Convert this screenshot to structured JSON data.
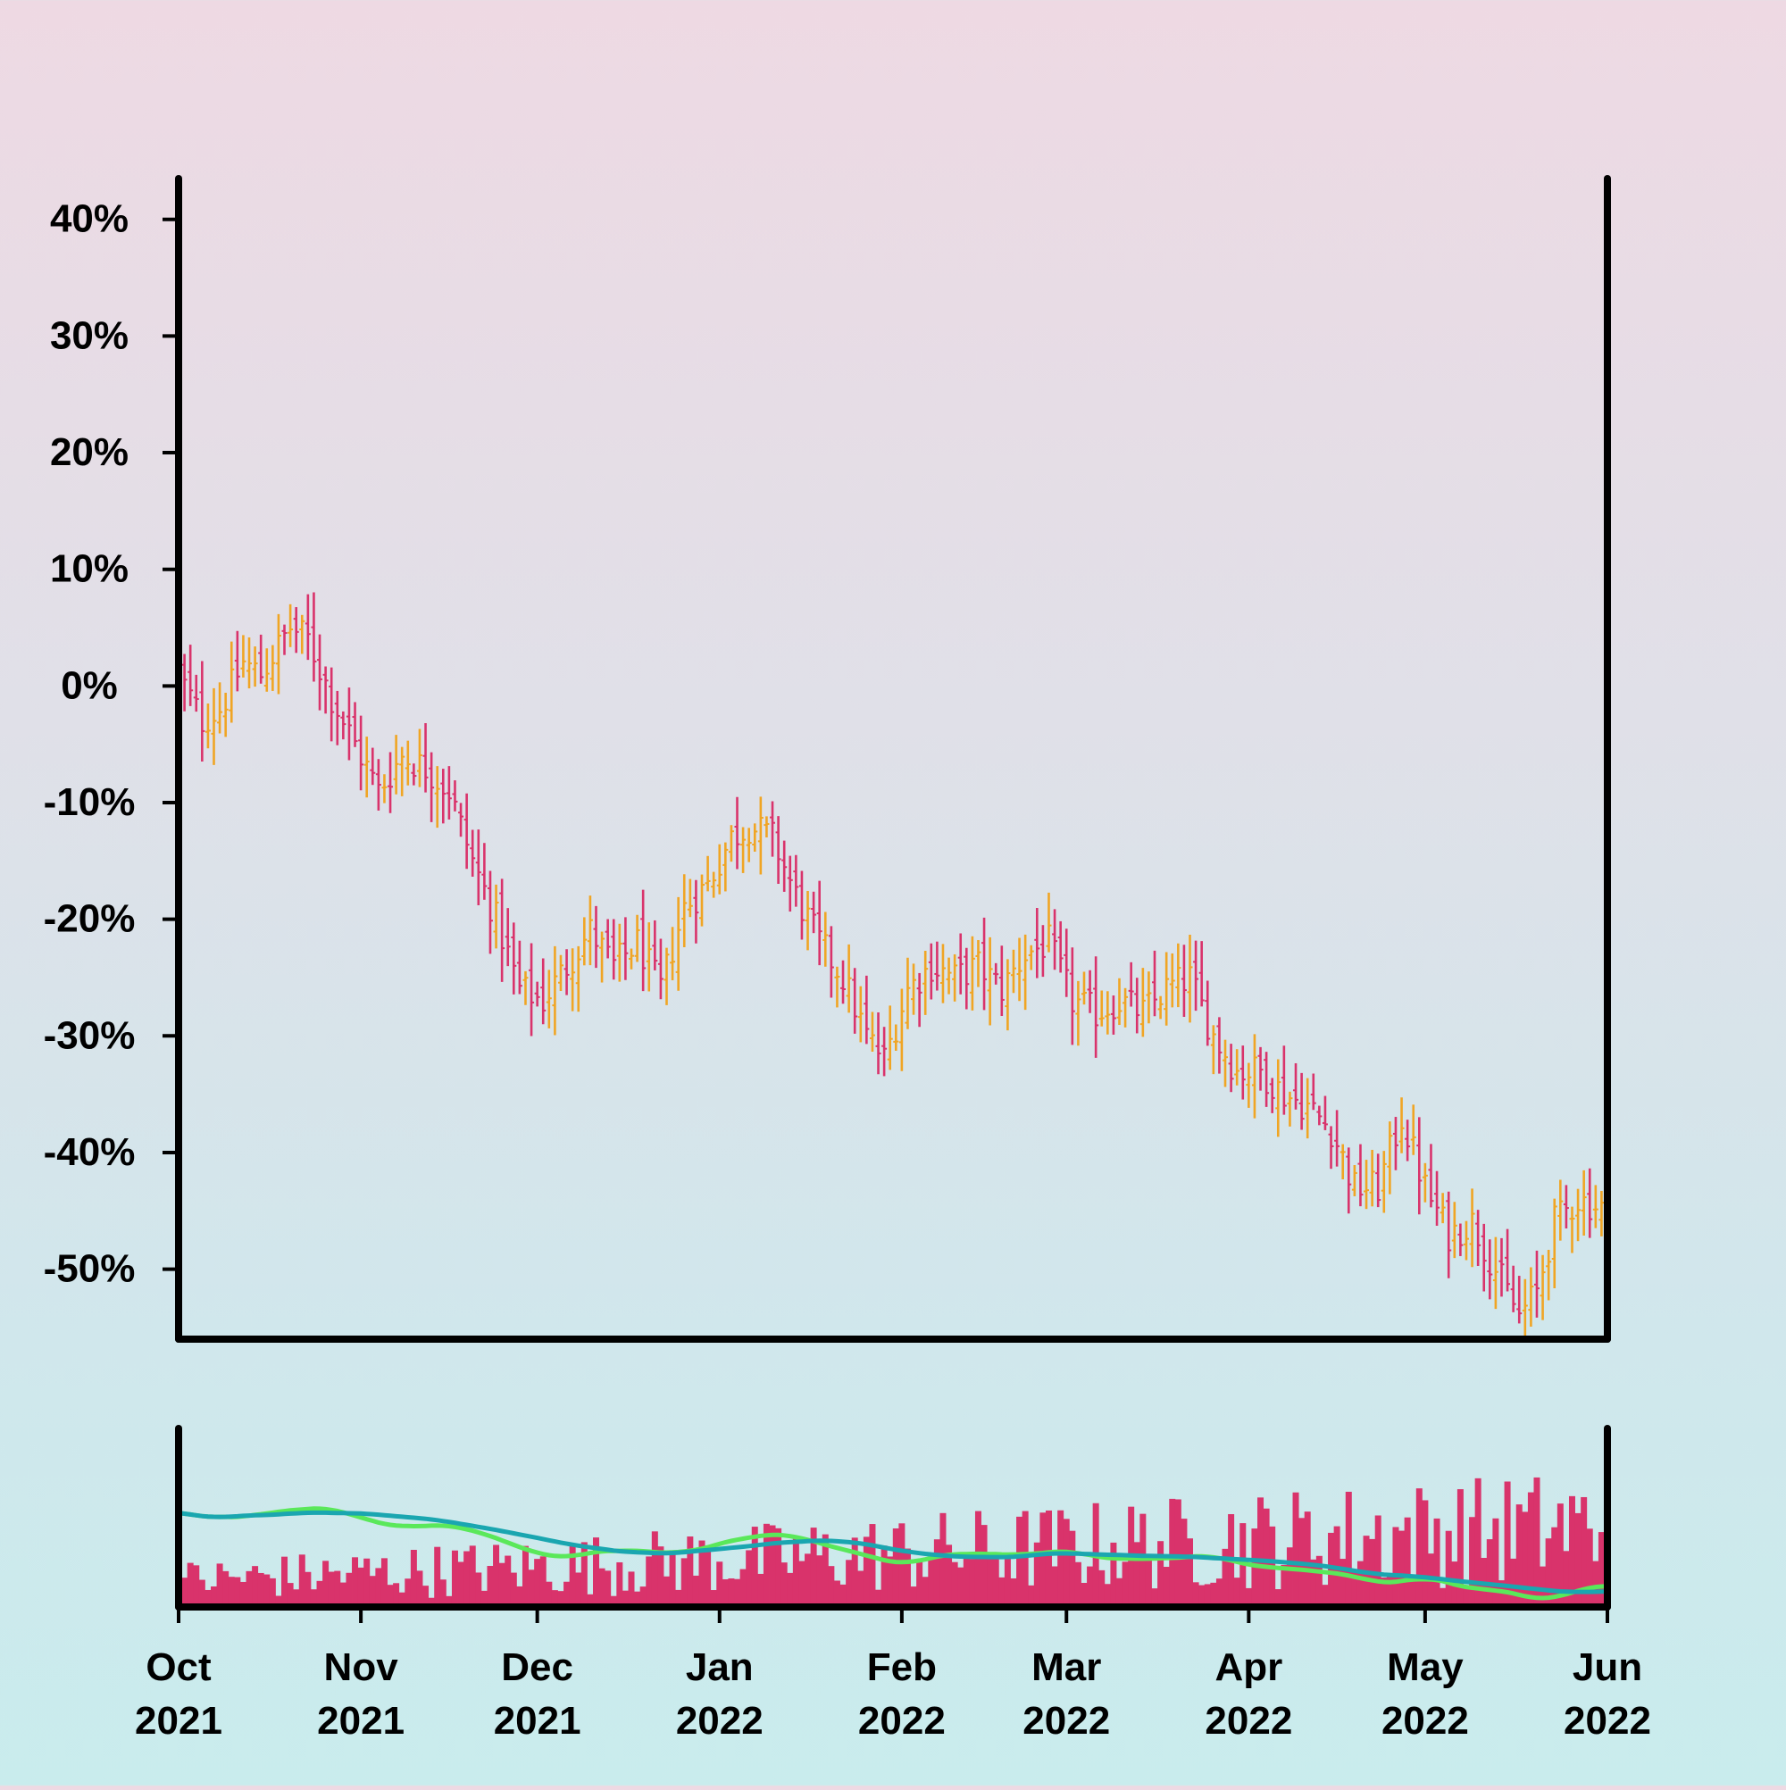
{
  "chart_data": {
    "type": "ohlc",
    "title": "",
    "xlabel": "",
    "ylabel": "",
    "x_range": [
      "2021-10-01",
      "2022-06-01"
    ],
    "y_range_pct": [
      -56,
      43.5
    ],
    "y_ticks": [
      40,
      30,
      20,
      10,
      0,
      -10,
      -20,
      -30,
      -40,
      -50
    ],
    "y_tick_labels": [
      "40%",
      "30%",
      "20%",
      "10%",
      "0%",
      "-10%",
      "-20%",
      "-30%",
      "-40%",
      "-50%"
    ],
    "x_ticks": [
      {
        "date": "2021-10-01",
        "month": "Oct",
        "year": "2021"
      },
      {
        "date": "2021-11-01",
        "month": "Nov",
        "year": "2021"
      },
      {
        "date": "2021-12-01",
        "month": "Dec",
        "year": "2021"
      },
      {
        "date": "2022-01-01",
        "month": "Jan",
        "year": "2022"
      },
      {
        "date": "2022-02-01",
        "month": "Feb",
        "year": "2022"
      },
      {
        "date": "2022-03-01",
        "month": "Mar",
        "year": "2022"
      },
      {
        "date": "2022-04-01",
        "month": "Apr",
        "year": "2022"
      },
      {
        "date": "2022-05-01",
        "month": "May",
        "year": "2022"
      },
      {
        "date": "2022-06-01",
        "month": "Jun",
        "year": "2022"
      }
    ],
    "close_path_pct": [
      [
        "2021-10-01",
        1
      ],
      [
        "2021-10-05",
        -3
      ],
      [
        "2021-10-08",
        -2
      ],
      [
        "2021-10-12",
        2
      ],
      [
        "2021-10-15",
        1
      ],
      [
        "2021-10-20",
        5
      ],
      [
        "2021-10-23",
        4
      ],
      [
        "2021-10-27",
        -1
      ],
      [
        "2021-10-31",
        -5
      ],
      [
        "2021-11-04",
        -9
      ],
      [
        "2021-11-08",
        -6
      ],
      [
        "2021-11-12",
        -7
      ],
      [
        "2021-11-16",
        -9
      ],
      [
        "2021-11-20",
        -15
      ],
      [
        "2021-11-24",
        -20
      ],
      [
        "2021-11-28",
        -26
      ],
      [
        "2021-12-02",
        -27
      ],
      [
        "2021-12-06",
        -24
      ],
      [
        "2021-12-10",
        -21
      ],
      [
        "2021-12-14",
        -24
      ],
      [
        "2021-12-18",
        -22
      ],
      [
        "2021-12-22",
        -26
      ],
      [
        "2021-12-26",
        -19
      ],
      [
        "2021-12-30",
        -17
      ],
      [
        "2022-01-03",
        -13
      ],
      [
        "2022-01-06",
        -12
      ],
      [
        "2022-01-10",
        -13
      ],
      [
        "2022-01-14",
        -18
      ],
      [
        "2022-01-18",
        -22
      ],
      [
        "2022-01-22",
        -25
      ],
      [
        "2022-01-26",
        -30
      ],
      [
        "2022-01-29",
        -32
      ],
      [
        "2022-02-02",
        -26
      ],
      [
        "2022-02-06",
        -24
      ],
      [
        "2022-02-10",
        -25
      ],
      [
        "2022-02-14",
        -24
      ],
      [
        "2022-02-18",
        -26
      ],
      [
        "2022-02-22",
        -23
      ],
      [
        "2022-02-26",
        -22
      ],
      [
        "2022-03-02",
        -27
      ],
      [
        "2022-03-06",
        -28
      ],
      [
        "2022-03-10",
        -27
      ],
      [
        "2022-03-14",
        -28
      ],
      [
        "2022-03-18",
        -26
      ],
      [
        "2022-03-22",
        -25
      ],
      [
        "2022-03-26",
        -30
      ],
      [
        "2022-03-30",
        -33
      ],
      [
        "2022-04-03",
        -33
      ],
      [
        "2022-04-07",
        -35
      ],
      [
        "2022-04-11",
        -36
      ],
      [
        "2022-04-15",
        -38
      ],
      [
        "2022-04-19",
        -43
      ],
      [
        "2022-04-23",
        -43
      ],
      [
        "2022-04-27",
        -37
      ],
      [
        "2022-05-01",
        -43
      ],
      [
        "2022-05-05",
        -47
      ],
      [
        "2022-05-09",
        -46
      ],
      [
        "2022-05-13",
        -50
      ],
      [
        "2022-05-17",
        -54
      ],
      [
        "2022-05-20",
        -52
      ],
      [
        "2022-05-23",
        -46
      ],
      [
        "2022-05-27",
        -44
      ],
      [
        "2022-06-01",
        -45
      ]
    ],
    "volume_area": {
      "series_count": 3,
      "bar_color": "#d9336b",
      "ma_fast": {
        "color": "#5ae85a"
      },
      "ma_slow": {
        "color": "#1aa6b0"
      }
    },
    "colors": {
      "up": "#f0a524",
      "down": "#d9336b",
      "axis": "#000000"
    }
  }
}
